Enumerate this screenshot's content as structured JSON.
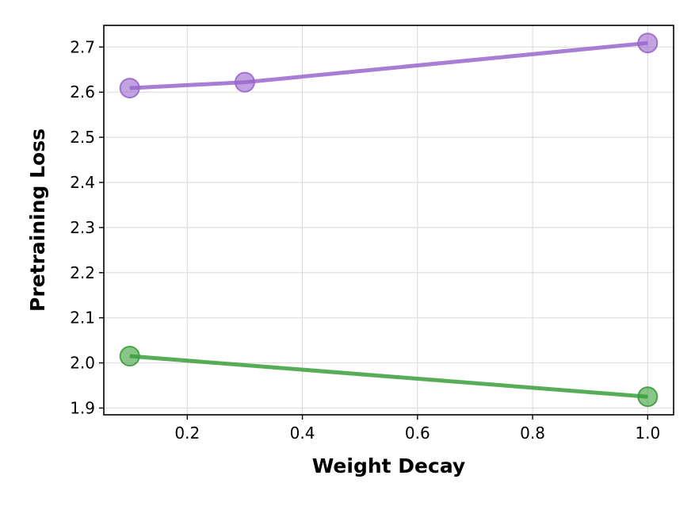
{
  "chart_data": {
    "type": "line",
    "title": "",
    "xlabel": "Weight Decay",
    "ylabel": "Pretraining Loss",
    "xlim": [
      0.055,
      1.045
    ],
    "ylim": [
      1.885,
      2.748
    ],
    "xticks": [
      0.2,
      0.4,
      0.6,
      0.8,
      1.0
    ],
    "xtick_labels": [
      "0.2",
      "0.4",
      "0.6",
      "0.8",
      "1.0"
    ],
    "yticks": [
      1.9,
      2.0,
      2.1,
      2.2,
      2.3,
      2.4,
      2.5,
      2.6,
      2.7
    ],
    "ytick_labels": [
      "1.9",
      "2.0",
      "2.1",
      "2.2",
      "2.3",
      "2.4",
      "2.5",
      "2.6",
      "2.7"
    ],
    "grid": true,
    "legend": "none",
    "series": [
      {
        "color": "#9966cc",
        "x": [
          0.1,
          0.3,
          1.0
        ],
        "y": [
          2.609,
          2.622,
          2.709
        ]
      },
      {
        "color": "#3a9f3a",
        "x": [
          0.1,
          1.0
        ],
        "y": [
          2.015,
          1.925
        ]
      }
    ]
  }
}
